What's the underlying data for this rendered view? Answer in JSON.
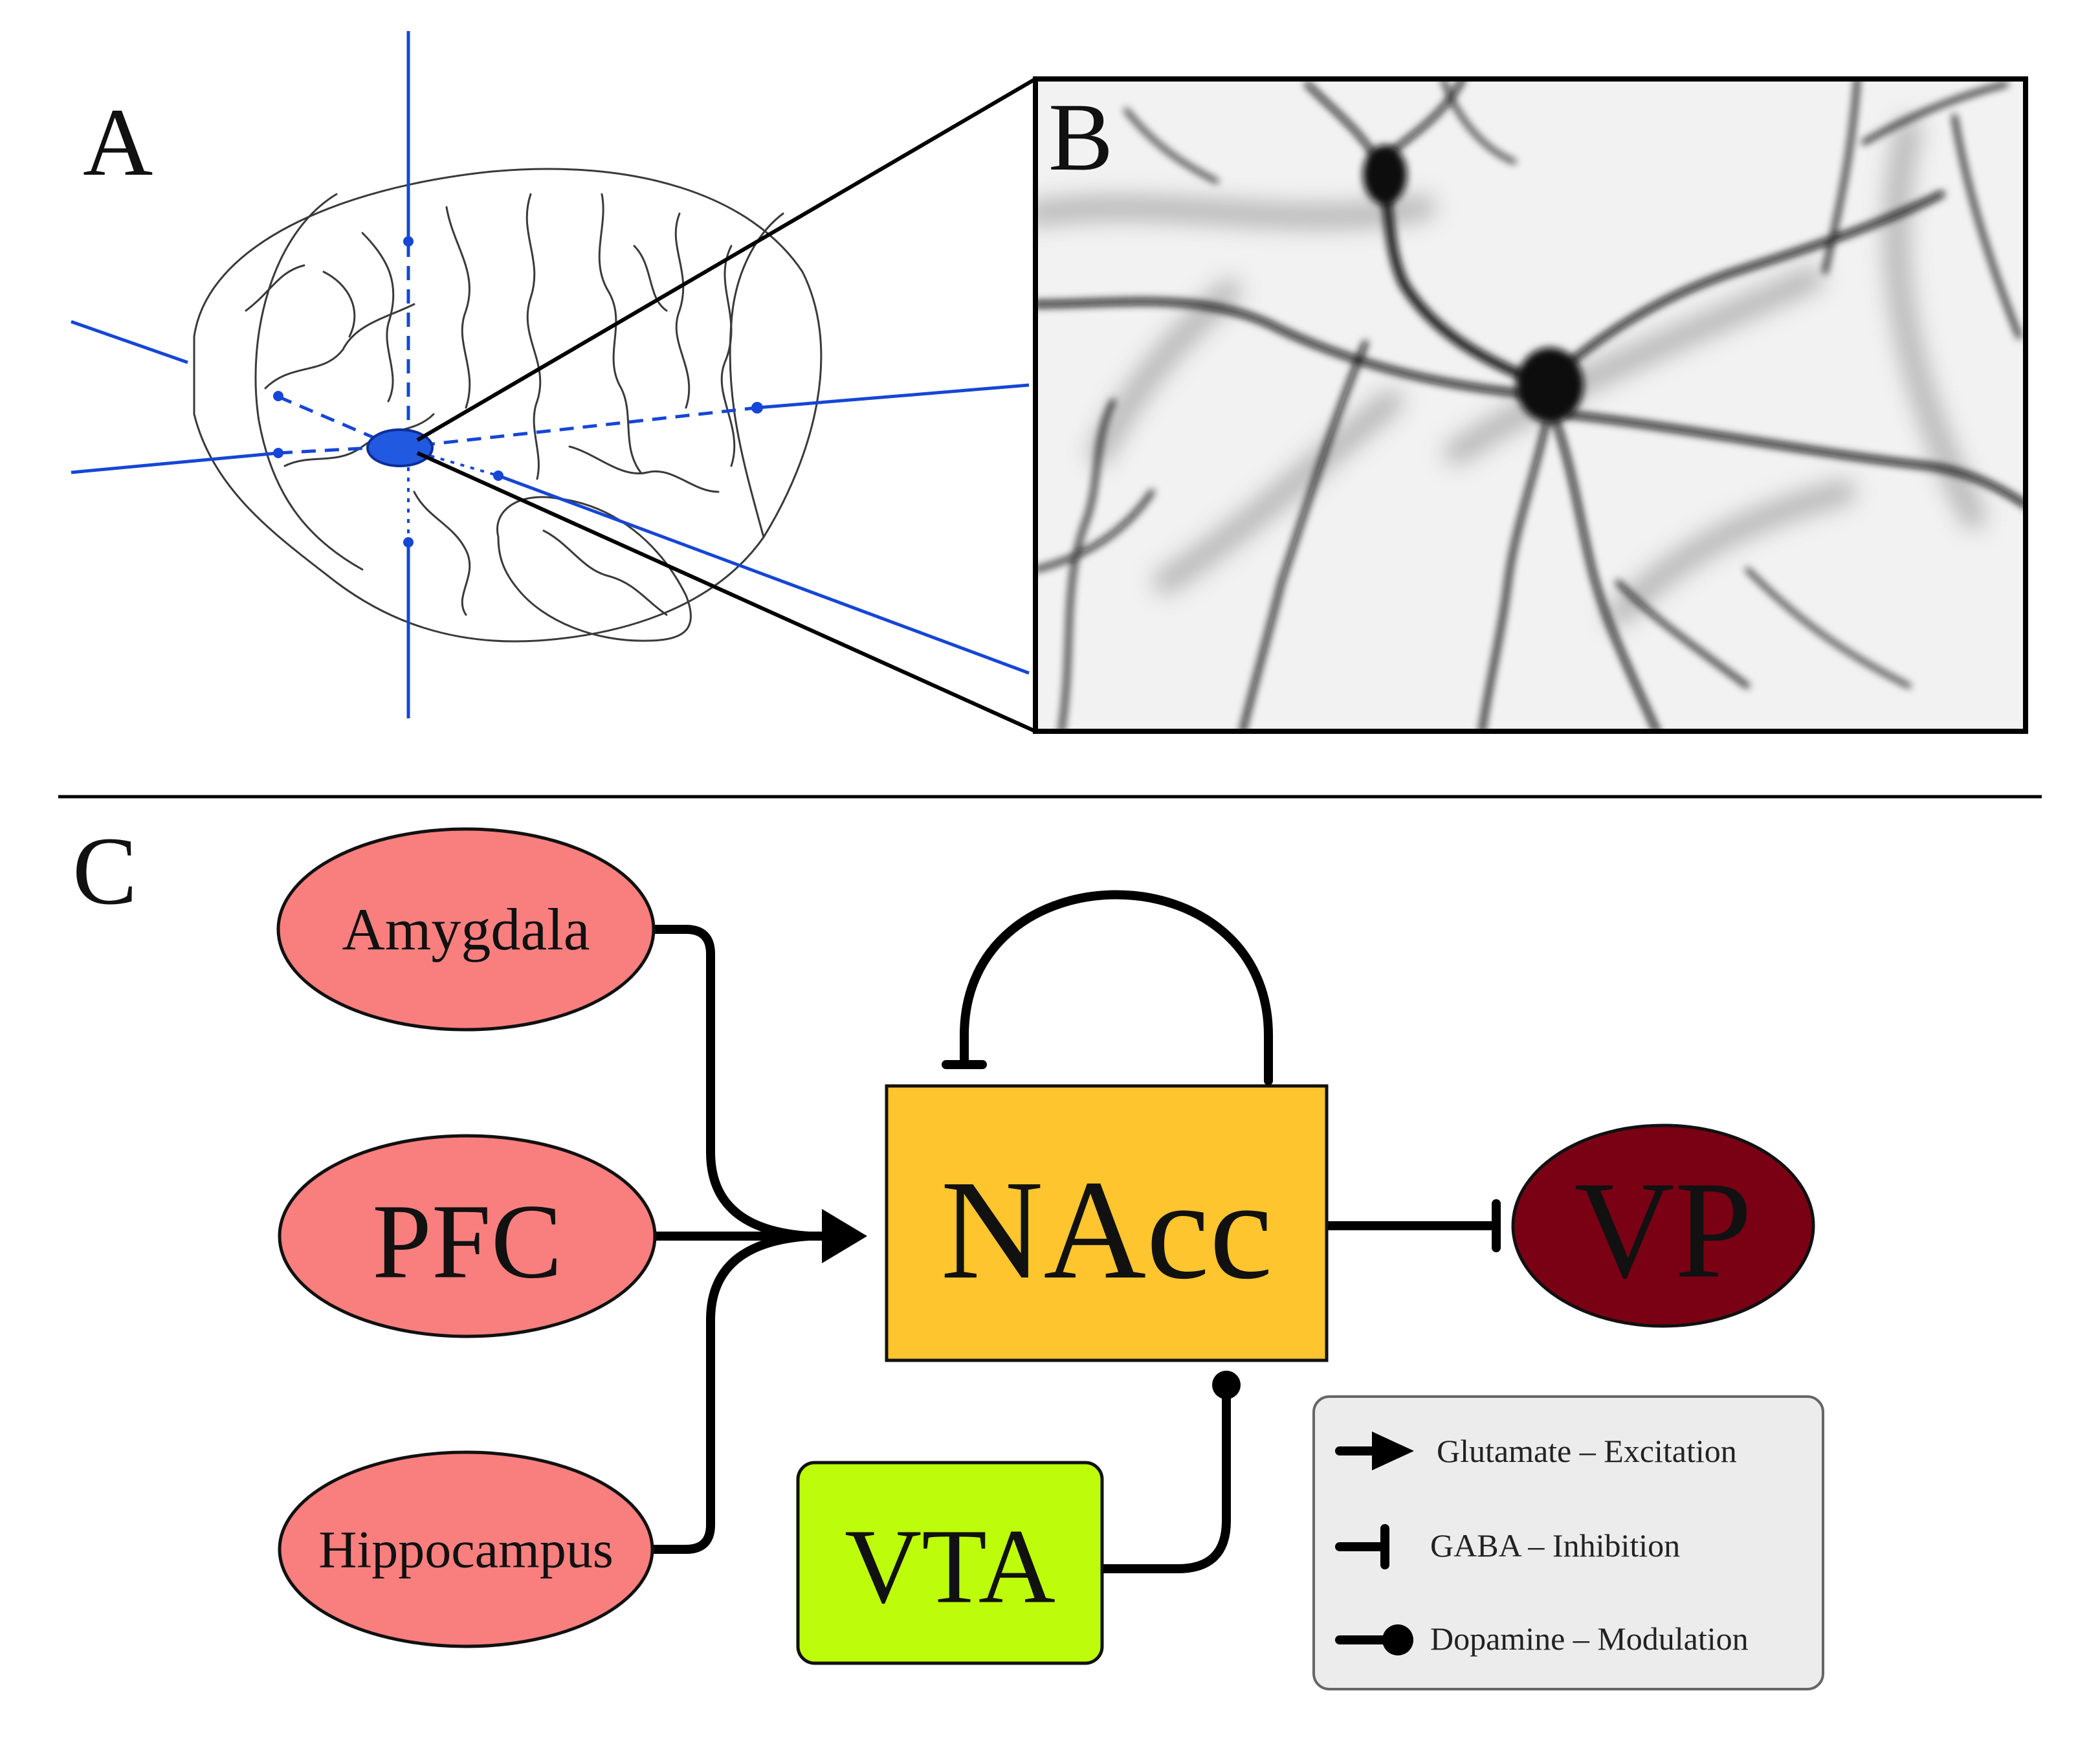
{
  "panels": {
    "a": "A",
    "b": "B",
    "c": "C"
  },
  "nodes": {
    "amygdala": "Amygdala",
    "pfc": "PFC",
    "hippocampus": "Hippocampus",
    "nacc": "NAcc",
    "vp": "VP",
    "vta": "VTA"
  },
  "legend": {
    "excitation": "Glutamate – Excitation",
    "inhibition": "GABA – Inhibition",
    "modulation": "Dopamine – Modulation"
  },
  "colors": {
    "cortical_inputs": "#f97f7f",
    "nacc": "#fec52f",
    "vp": "#7a0014",
    "vta": "#bdfd0b",
    "legend_bg": "#ececec",
    "brain_axes": "#1646d6"
  },
  "icons": {
    "excitation": "arrowhead",
    "inhibition": "t-bar",
    "modulation": "filled-circle"
  }
}
